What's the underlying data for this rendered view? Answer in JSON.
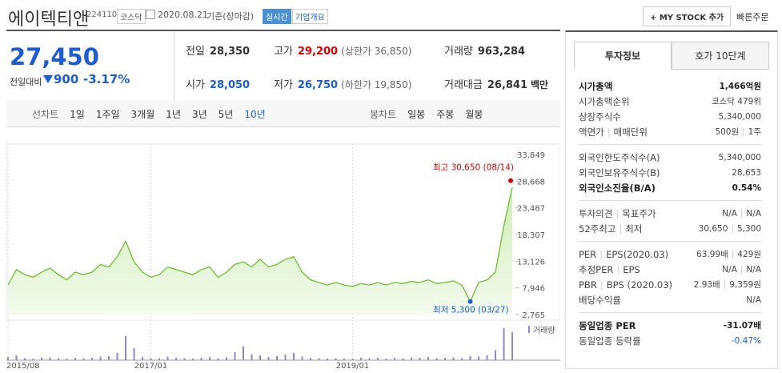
{
  "header": {
    "name": "에이텍티앤",
    "code": "224110",
    "market": "코스닥",
    "date": "2020.08.21",
    "status": "기준(장마감)",
    "realtime": "실시간",
    "company_menu": "기업개요",
    "mystock": "+ MY STOCK 추가",
    "quick_order": "빠른주문"
  },
  "quote": {
    "price": "27,450",
    "change_label": "전일대비",
    "change": "900",
    "change_pct": "-3.17%",
    "cells": [
      {
        "label": "전일",
        "value": "28,350"
      },
      {
        "label": "고가",
        "value": "29,200",
        "note": "(상한가 36,850)"
      },
      {
        "label": "거래량",
        "value": "963,284"
      },
      {
        "label": "시가",
        "value": "28,050"
      },
      {
        "label": "저가",
        "value": "26,750",
        "note": "(하한가 19,850)"
      },
      {
        "label": "거래대금",
        "value": "26,841",
        "unit": "백만"
      }
    ]
  },
  "chart_tabs": {
    "line_label": "선차트",
    "line_periods": [
      "1일",
      "1주일",
      "3개월",
      "1년",
      "3년",
      "5년",
      "10년"
    ],
    "candle_label": "봉차트",
    "candle_periods": [
      "일봉",
      "주봉",
      "월봉"
    ]
  },
  "chart_data": {
    "type": "line",
    "color": "#6cbf2e",
    "categories": [
      "2015/08",
      null,
      null,
      null,
      null,
      null,
      null,
      null,
      null,
      null,
      null,
      null,
      null,
      null,
      null,
      null,
      null,
      "2017/01",
      null,
      null,
      null,
      null,
      null,
      null,
      null,
      null,
      null,
      null,
      null,
      null,
      null,
      null,
      null,
      null,
      null,
      null,
      null,
      null,
      null,
      null,
      null,
      "2019/01",
      null,
      null,
      null,
      null,
      null,
      null,
      null,
      null,
      null,
      null,
      null,
      null,
      null,
      null,
      null,
      null,
      null,
      null,
      null
    ],
    "values": [
      8500,
      11500,
      10500,
      10000,
      11000,
      11800,
      10500,
      9500,
      11000,
      10500,
      11000,
      12500,
      12000,
      14000,
      17000,
      13000,
      11000,
      10000,
      10500,
      12000,
      11500,
      11000,
      10500,
      11500,
      12000,
      10000,
      11000,
      12500,
      13000,
      12000,
      13500,
      12000,
      12500,
      13500,
      14000,
      11000,
      9500,
      9000,
      8500,
      9000,
      8500,
      8200,
      8800,
      8500,
      9000,
      8500,
      9000,
      8800,
      9200,
      9000,
      9500,
      8800,
      9000,
      9300,
      8500,
      5300,
      9000,
      9500,
      11000,
      20000,
      27450
    ],
    "volume_label": "거래량",
    "volume_color": "#8e86c8",
    "volume": [
      8,
      12,
      5,
      4,
      6,
      7,
      5,
      4,
      6,
      5,
      6,
      9,
      10,
      18,
      60,
      30,
      8,
      5,
      5,
      9,
      6,
      5,
      4,
      6,
      8,
      5,
      7,
      20,
      35,
      15,
      12,
      8,
      10,
      14,
      18,
      9,
      6,
      5,
      4,
      5,
      4,
      4,
      6,
      5,
      6,
      4,
      6,
      5,
      7,
      6,
      8,
      5,
      6,
      7,
      5,
      10,
      9,
      12,
      25,
      80,
      70
    ],
    "ylim": [
      2765,
      33849
    ],
    "yticks": [
      {
        "value": 33849,
        "label": "33,849"
      },
      {
        "value": 28668,
        "label": "28,668"
      },
      {
        "value": 23487,
        "label": "23,487"
      },
      {
        "value": 18307,
        "label": "18,307"
      },
      {
        "value": 13126,
        "label": "13,126"
      },
      {
        "value": 7946,
        "label": "7,946"
      },
      {
        "value": 2765,
        "label": "2,765"
      }
    ],
    "high": {
      "label": "최고 30,650 (08/14)",
      "value": 30650,
      "color": "#e00000"
    },
    "low": {
      "label": "최저 5,300 (03/27)",
      "value": 5300,
      "color": "#1a5dd6"
    }
  },
  "invest": {
    "tabs": [
      "투자정보",
      "호가 10단계"
    ],
    "groups": [
      [
        {
          "label": [
            "시가총액"
          ],
          "value": [
            "1,466억원"
          ],
          "bold": true
        },
        {
          "label": [
            "시가총액순위"
          ],
          "value": [
            "코스닥 479위"
          ]
        },
        {
          "label": [
            "상장주식수"
          ],
          "value": [
            "5,340,000"
          ]
        },
        {
          "label": [
            "액면가",
            "매매단위"
          ],
          "value": [
            "500원",
            "1주"
          ]
        }
      ],
      [
        {
          "label": [
            "외국인한도주식수(A)"
          ],
          "value": [
            "5,340,000"
          ]
        },
        {
          "label": [
            "외국인보유주식수(B)"
          ],
          "value": [
            "28,653"
          ]
        },
        {
          "label": [
            "외국인소진율(B/A)"
          ],
          "value": [
            "0.54%"
          ],
          "bold": true
        }
      ],
      [
        {
          "label": [
            "투자의견",
            "목표주가"
          ],
          "value": [
            "N/A",
            "N/A"
          ]
        },
        {
          "label": [
            "52주최고",
            "최저"
          ],
          "value": [
            "30,650",
            "5,300"
          ]
        }
      ],
      [
        {
          "label": [
            "PER",
            "EPS(2020.03)"
          ],
          "value": [
            "63.99배",
            "429원"
          ]
        },
        {
          "label": [
            "추정PER",
            "EPS"
          ],
          "value": [
            "N/A",
            "N/A"
          ]
        },
        {
          "label": [
            "PBR",
            "BPS (2020.03)"
          ],
          "value": [
            "2.93배",
            "9,359원"
          ]
        },
        {
          "label": [
            "배당수익률"
          ],
          "value": [
            "N/A"
          ]
        }
      ],
      [
        {
          "label": [
            "동일업종 PER"
          ],
          "value": [
            "-31.07배"
          ],
          "bold": true
        },
        {
          "label": [
            "동일업종 등락률"
          ],
          "value": [
            "-0.47%"
          ],
          "blue": true
        }
      ]
    ]
  }
}
